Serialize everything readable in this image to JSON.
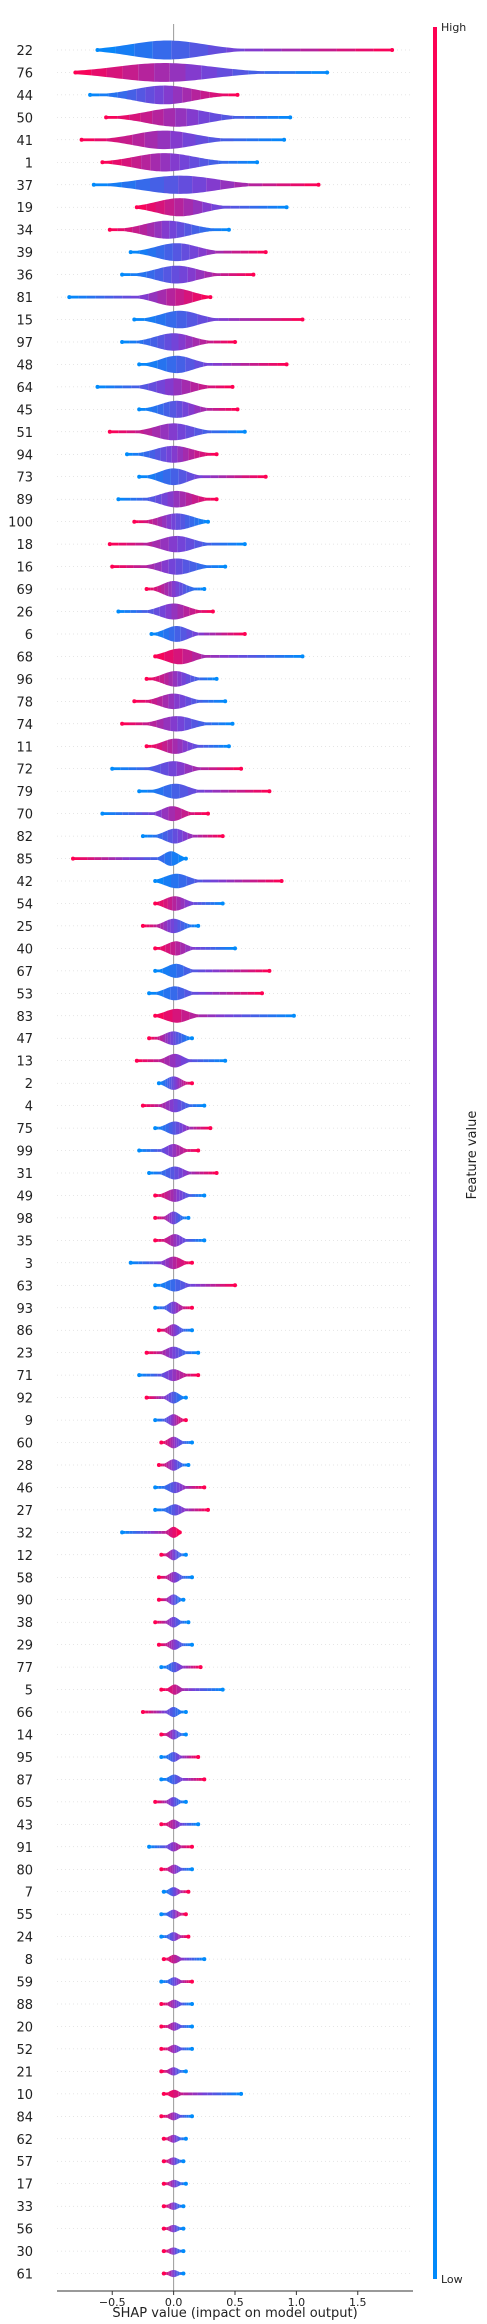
{
  "chart_data": {
    "type": "scatter",
    "title": "",
    "xlabel": "SHAP value (impact on model output)",
    "ylabel": "",
    "xlim": [
      -0.95,
      1.95
    ],
    "xticks": [
      -0.5,
      0.0,
      0.5,
      1.0,
      1.5
    ],
    "xtick_labels": [
      "−0.5",
      "0.0",
      "0.5",
      "1.0",
      "1.5"
    ],
    "grid": false,
    "colorbar": {
      "label": "Feature value",
      "high_label": "High",
      "low_label": "Low",
      "high_color": "#ff0052",
      "mid_color": "#7b3fd6",
      "low_color": "#008bfb"
    },
    "features": [
      {
        "name": "22",
        "min": -0.62,
        "max": 1.78,
        "q1": -0.45,
        "q3": 0.35,
        "high_side": "right"
      },
      {
        "name": "76",
        "min": -0.8,
        "max": 1.25,
        "q1": -0.6,
        "q3": 0.45,
        "high_side": "left"
      },
      {
        "name": "44",
        "min": -0.68,
        "max": 0.52,
        "q1": -0.4,
        "q3": 0.25,
        "high_side": "right"
      },
      {
        "name": "50",
        "min": -0.55,
        "max": 0.95,
        "q1": -0.3,
        "q3": 0.35,
        "high_side": "left"
      },
      {
        "name": "41",
        "min": -0.75,
        "max": 0.9,
        "q1": -0.4,
        "q3": 0.25,
        "high_side": "left"
      },
      {
        "name": "1",
        "min": -0.58,
        "max": 0.68,
        "q1": -0.4,
        "q3": 0.25,
        "high_side": "left"
      },
      {
        "name": "37",
        "min": -0.65,
        "max": 1.18,
        "q1": -0.35,
        "q3": 0.45,
        "high_side": "right"
      },
      {
        "name": "19",
        "min": -0.3,
        "max": 0.92,
        "q1": -0.2,
        "q3": 0.3,
        "high_side": "left"
      },
      {
        "name": "34",
        "min": -0.52,
        "max": 0.45,
        "q1": -0.3,
        "q3": 0.2,
        "high_side": "left"
      },
      {
        "name": "39",
        "min": -0.35,
        "max": 0.75,
        "q1": -0.2,
        "q3": 0.25,
        "high_side": "right"
      },
      {
        "name": "36",
        "min": -0.42,
        "max": 0.65,
        "q1": -0.2,
        "q3": 0.25,
        "high_side": "right"
      },
      {
        "name": "81",
        "min": -0.85,
        "max": 0.3,
        "q1": -0.2,
        "q3": 0.2,
        "high_side": "right"
      },
      {
        "name": "15",
        "min": -0.32,
        "max": 1.05,
        "q1": -0.15,
        "q3": 0.25,
        "high_side": "right"
      },
      {
        "name": "97",
        "min": -0.42,
        "max": 0.5,
        "q1": -0.2,
        "q3": 0.2,
        "high_side": "right"
      },
      {
        "name": "48",
        "min": -0.28,
        "max": 0.92,
        "q1": -0.15,
        "q3": 0.2,
        "high_side": "right"
      },
      {
        "name": "64",
        "min": -0.62,
        "max": 0.48,
        "q1": -0.2,
        "q3": 0.2,
        "high_side": "right"
      },
      {
        "name": "45",
        "min": -0.28,
        "max": 0.52,
        "q1": -0.15,
        "q3": 0.2,
        "high_side": "right"
      },
      {
        "name": "51",
        "min": -0.52,
        "max": 0.58,
        "q1": -0.2,
        "q3": 0.2,
        "high_side": "left"
      },
      {
        "name": "94",
        "min": -0.38,
        "max": 0.35,
        "q1": -0.2,
        "q3": 0.2,
        "high_side": "right"
      },
      {
        "name": "73",
        "min": -0.28,
        "max": 0.75,
        "q1": -0.15,
        "q3": 0.15,
        "high_side": "right"
      },
      {
        "name": "89",
        "min": -0.45,
        "max": 0.35,
        "q1": -0.15,
        "q3": 0.2,
        "high_side": "right"
      },
      {
        "name": "100",
        "min": -0.32,
        "max": 0.28,
        "q1": -0.15,
        "q3": 0.2,
        "high_side": "left"
      },
      {
        "name": "18",
        "min": -0.52,
        "max": 0.58,
        "q1": -0.15,
        "q3": 0.2,
        "high_side": "left"
      },
      {
        "name": "16",
        "min": -0.5,
        "max": 0.42,
        "q1": -0.15,
        "q3": 0.2,
        "high_side": "left"
      },
      {
        "name": "69",
        "min": -0.22,
        "max": 0.25,
        "q1": -0.12,
        "q3": 0.12,
        "high_side": "left"
      },
      {
        "name": "26",
        "min": -0.45,
        "max": 0.32,
        "q1": -0.15,
        "q3": 0.15,
        "high_side": "right"
      },
      {
        "name": "6",
        "min": -0.18,
        "max": 0.58,
        "q1": -0.1,
        "q3": 0.15,
        "high_side": "right"
      },
      {
        "name": "68",
        "min": -0.15,
        "max": 1.05,
        "q1": -0.1,
        "q3": 0.2,
        "high_side": "left"
      },
      {
        "name": "96",
        "min": -0.22,
        "max": 0.35,
        "q1": -0.12,
        "q3": 0.15,
        "high_side": "left"
      },
      {
        "name": "78",
        "min": -0.32,
        "max": 0.42,
        "q1": -0.15,
        "q3": 0.15,
        "high_side": "left"
      },
      {
        "name": "74",
        "min": -0.42,
        "max": 0.48,
        "q1": -0.15,
        "q3": 0.2,
        "high_side": "left"
      },
      {
        "name": "11",
        "min": -0.22,
        "max": 0.45,
        "q1": -0.12,
        "q3": 0.15,
        "high_side": "left"
      },
      {
        "name": "72",
        "min": -0.5,
        "max": 0.55,
        "q1": -0.15,
        "q3": 0.15,
        "high_side": "right"
      },
      {
        "name": "79",
        "min": -0.28,
        "max": 0.78,
        "q1": -0.12,
        "q3": 0.15,
        "high_side": "right"
      },
      {
        "name": "70",
        "min": -0.58,
        "max": 0.28,
        "q1": -0.12,
        "q3": 0.1,
        "high_side": "right"
      },
      {
        "name": "82",
        "min": -0.25,
        "max": 0.4,
        "q1": -0.1,
        "q3": 0.12,
        "high_side": "right"
      },
      {
        "name": "85",
        "min": -0.82,
        "max": 0.1,
        "q1": -0.1,
        "q3": 0.06,
        "high_side": "left"
      },
      {
        "name": "42",
        "min": -0.15,
        "max": 0.88,
        "q1": -0.1,
        "q3": 0.15,
        "high_side": "right"
      },
      {
        "name": "54",
        "min": -0.15,
        "max": 0.4,
        "q1": -0.1,
        "q3": 0.12,
        "high_side": "left"
      },
      {
        "name": "25",
        "min": -0.25,
        "max": 0.2,
        "q1": -0.1,
        "q3": 0.1,
        "high_side": "left"
      },
      {
        "name": "40",
        "min": -0.15,
        "max": 0.5,
        "q1": -0.08,
        "q3": 0.12,
        "high_side": "left"
      },
      {
        "name": "67",
        "min": -0.15,
        "max": 0.78,
        "q1": -0.08,
        "q3": 0.12,
        "high_side": "right"
      },
      {
        "name": "53",
        "min": -0.2,
        "max": 0.72,
        "q1": -0.1,
        "q3": 0.12,
        "high_side": "right"
      },
      {
        "name": "83",
        "min": -0.15,
        "max": 0.98,
        "q1": -0.1,
        "q3": 0.15,
        "high_side": "left"
      },
      {
        "name": "47",
        "min": -0.2,
        "max": 0.15,
        "q1": -0.1,
        "q3": 0.1,
        "high_side": "left"
      },
      {
        "name": "13",
        "min": -0.3,
        "max": 0.42,
        "q1": -0.08,
        "q3": 0.1,
        "high_side": "left"
      },
      {
        "name": "2",
        "min": -0.12,
        "max": 0.15,
        "q1": -0.08,
        "q3": 0.08,
        "high_side": "right"
      },
      {
        "name": "4",
        "min": -0.25,
        "max": 0.25,
        "q1": -0.08,
        "q3": 0.1,
        "high_side": "left"
      },
      {
        "name": "75",
        "min": -0.15,
        "max": 0.3,
        "q1": -0.08,
        "q3": 0.1,
        "high_side": "right"
      },
      {
        "name": "99",
        "min": -0.28,
        "max": 0.2,
        "q1": -0.08,
        "q3": 0.08,
        "high_side": "right"
      },
      {
        "name": "31",
        "min": -0.2,
        "max": 0.35,
        "q1": -0.08,
        "q3": 0.1,
        "high_side": "right"
      },
      {
        "name": "49",
        "min": -0.15,
        "max": 0.25,
        "q1": -0.08,
        "q3": 0.1,
        "high_side": "left"
      },
      {
        "name": "98",
        "min": -0.15,
        "max": 0.12,
        "q1": -0.06,
        "q3": 0.06,
        "high_side": "left"
      },
      {
        "name": "35",
        "min": -0.15,
        "max": 0.25,
        "q1": -0.06,
        "q3": 0.08,
        "high_side": "left"
      },
      {
        "name": "3",
        "min": -0.35,
        "max": 0.15,
        "q1": -0.08,
        "q3": 0.08,
        "high_side": "right"
      },
      {
        "name": "63",
        "min": -0.15,
        "max": 0.5,
        "q1": -0.08,
        "q3": 0.1,
        "high_side": "right"
      },
      {
        "name": "93",
        "min": -0.15,
        "max": 0.15,
        "q1": -0.06,
        "q3": 0.06,
        "high_side": "right"
      },
      {
        "name": "86",
        "min": -0.12,
        "max": 0.15,
        "q1": -0.06,
        "q3": 0.06,
        "high_side": "left"
      },
      {
        "name": "23",
        "min": -0.22,
        "max": 0.2,
        "q1": -0.08,
        "q3": 0.08,
        "high_side": "left"
      },
      {
        "name": "71",
        "min": -0.28,
        "max": 0.2,
        "q1": -0.08,
        "q3": 0.08,
        "high_side": "right"
      },
      {
        "name": "92",
        "min": -0.22,
        "max": 0.1,
        "q1": -0.06,
        "q3": 0.06,
        "high_side": "left"
      },
      {
        "name": "9",
        "min": -0.15,
        "max": 0.1,
        "q1": -0.06,
        "q3": 0.06,
        "high_side": "right"
      },
      {
        "name": "60",
        "min": -0.1,
        "max": 0.15,
        "q1": -0.06,
        "q3": 0.06,
        "high_side": "left"
      },
      {
        "name": "28",
        "min": -0.12,
        "max": 0.12,
        "q1": -0.06,
        "q3": 0.06,
        "high_side": "left"
      },
      {
        "name": "46",
        "min": -0.15,
        "max": 0.25,
        "q1": -0.06,
        "q3": 0.08,
        "high_side": "right"
      },
      {
        "name": "27",
        "min": -0.15,
        "max": 0.28,
        "q1": -0.06,
        "q3": 0.08,
        "high_side": "right"
      },
      {
        "name": "32",
        "min": -0.42,
        "max": 0.05,
        "q1": -0.04,
        "q3": 0.04,
        "high_side": "right"
      },
      {
        "name": "12",
        "min": -0.1,
        "max": 0.1,
        "q1": -0.05,
        "q3": 0.05,
        "high_side": "left"
      },
      {
        "name": "58",
        "min": -0.12,
        "max": 0.15,
        "q1": -0.05,
        "q3": 0.06,
        "high_side": "left"
      },
      {
        "name": "90",
        "min": -0.12,
        "max": 0.08,
        "q1": -0.05,
        "q3": 0.05,
        "high_side": "left"
      },
      {
        "name": "38",
        "min": -0.15,
        "max": 0.12,
        "q1": -0.05,
        "q3": 0.05,
        "high_side": "left"
      },
      {
        "name": "29",
        "min": -0.12,
        "max": 0.15,
        "q1": -0.05,
        "q3": 0.06,
        "high_side": "left"
      },
      {
        "name": "77",
        "min": -0.1,
        "max": 0.22,
        "q1": -0.05,
        "q3": 0.06,
        "high_side": "right"
      },
      {
        "name": "5",
        "min": -0.1,
        "max": 0.4,
        "q1": -0.04,
        "q3": 0.06,
        "high_side": "left"
      },
      {
        "name": "66",
        "min": -0.25,
        "max": 0.1,
        "q1": -0.05,
        "q3": 0.05,
        "high_side": "left"
      },
      {
        "name": "14",
        "min": -0.1,
        "max": 0.1,
        "q1": -0.05,
        "q3": 0.05,
        "high_side": "left"
      },
      {
        "name": "95",
        "min": -0.1,
        "max": 0.2,
        "q1": -0.05,
        "q3": 0.05,
        "high_side": "right"
      },
      {
        "name": "87",
        "min": -0.1,
        "max": 0.25,
        "q1": -0.05,
        "q3": 0.06,
        "high_side": "right"
      },
      {
        "name": "65",
        "min": -0.15,
        "max": 0.1,
        "q1": -0.05,
        "q3": 0.05,
        "high_side": "left"
      },
      {
        "name": "43",
        "min": -0.1,
        "max": 0.2,
        "q1": -0.05,
        "q3": 0.05,
        "high_side": "left"
      },
      {
        "name": "91",
        "min": -0.2,
        "max": 0.15,
        "q1": -0.05,
        "q3": 0.05,
        "high_side": "right"
      },
      {
        "name": "80",
        "min": -0.1,
        "max": 0.15,
        "q1": -0.04,
        "q3": 0.05,
        "high_side": "left"
      },
      {
        "name": "7",
        "min": -0.08,
        "max": 0.12,
        "q1": -0.04,
        "q3": 0.04,
        "high_side": "right"
      },
      {
        "name": "55",
        "min": -0.1,
        "max": 0.1,
        "q1": -0.04,
        "q3": 0.04,
        "high_side": "right"
      },
      {
        "name": "24",
        "min": -0.1,
        "max": 0.12,
        "q1": -0.04,
        "q3": 0.04,
        "high_side": "right"
      },
      {
        "name": "8",
        "min": -0.08,
        "max": 0.25,
        "q1": -0.04,
        "q3": 0.05,
        "high_side": "left"
      },
      {
        "name": "59",
        "min": -0.1,
        "max": 0.15,
        "q1": -0.04,
        "q3": 0.05,
        "high_side": "right"
      },
      {
        "name": "88",
        "min": -0.1,
        "max": 0.15,
        "q1": -0.04,
        "q3": 0.05,
        "high_side": "left"
      },
      {
        "name": "20",
        "min": -0.1,
        "max": 0.15,
        "q1": -0.04,
        "q3": 0.05,
        "high_side": "left"
      },
      {
        "name": "52",
        "min": -0.1,
        "max": 0.15,
        "q1": -0.04,
        "q3": 0.05,
        "high_side": "left"
      },
      {
        "name": "21",
        "min": -0.1,
        "max": 0.1,
        "q1": -0.04,
        "q3": 0.04,
        "high_side": "left"
      },
      {
        "name": "10",
        "min": -0.08,
        "max": 0.55,
        "q1": -0.04,
        "q3": 0.05,
        "high_side": "left"
      },
      {
        "name": "84",
        "min": -0.1,
        "max": 0.15,
        "q1": -0.04,
        "q3": 0.04,
        "high_side": "left"
      },
      {
        "name": "62",
        "min": -0.08,
        "max": 0.1,
        "q1": -0.04,
        "q3": 0.04,
        "high_side": "left"
      },
      {
        "name": "57",
        "min": -0.08,
        "max": 0.08,
        "q1": -0.03,
        "q3": 0.03,
        "high_side": "left"
      },
      {
        "name": "17",
        "min": -0.08,
        "max": 0.1,
        "q1": -0.03,
        "q3": 0.04,
        "high_side": "left"
      },
      {
        "name": "33",
        "min": -0.08,
        "max": 0.08,
        "q1": -0.03,
        "q3": 0.03,
        "high_side": "left"
      },
      {
        "name": "56",
        "min": -0.08,
        "max": 0.08,
        "q1": -0.03,
        "q3": 0.03,
        "high_side": "left"
      },
      {
        "name": "30",
        "min": -0.08,
        "max": 0.08,
        "q1": -0.03,
        "q3": 0.03,
        "high_side": "left"
      },
      {
        "name": "61",
        "min": -0.08,
        "max": 0.08,
        "q1": -0.03,
        "q3": 0.03,
        "high_side": "left"
      }
    ]
  }
}
